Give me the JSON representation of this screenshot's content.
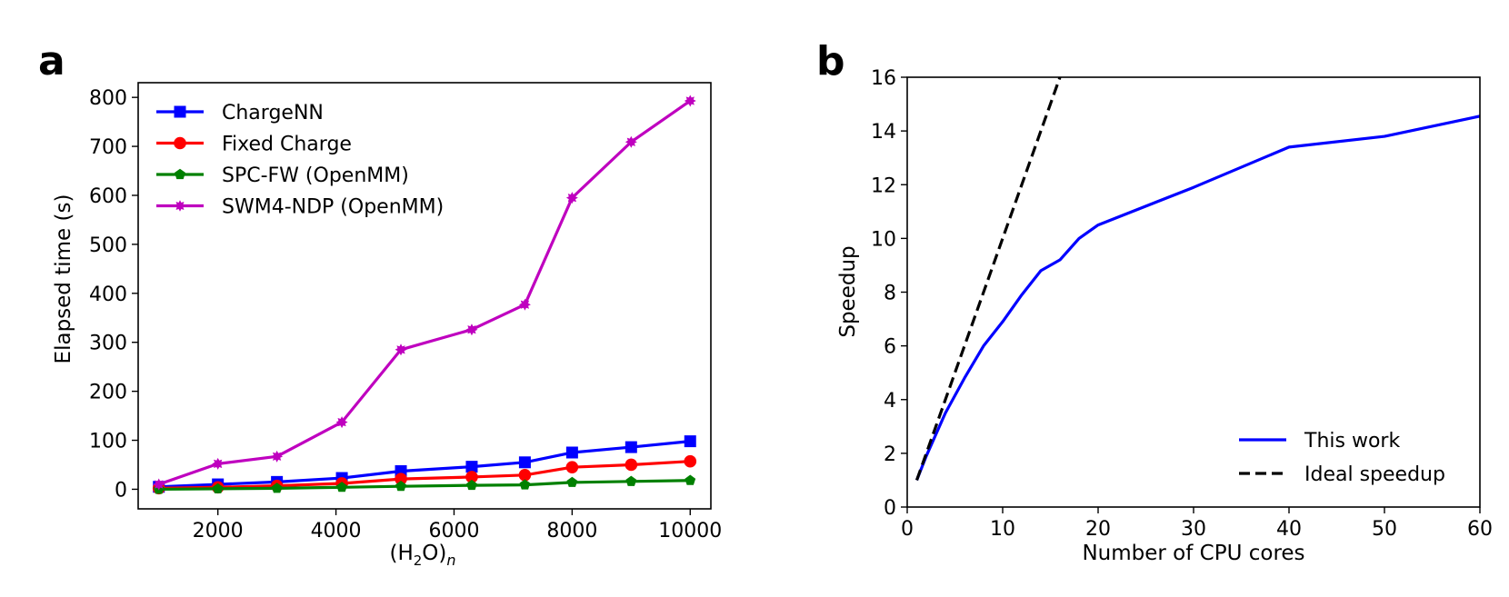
{
  "chart_data": [
    {
      "panel": "a",
      "type": "line",
      "xlabel_prefix": "(H",
      "xlabel_sub": "2",
      "xlabel_mid": "O)",
      "xlabel_subscript_var": "n",
      "ylabel": "Elapsed time (s)",
      "xlim": [
        650,
        10350
      ],
      "ylim": [
        -40,
        830
      ],
      "xticks": [
        2000,
        4000,
        6000,
        8000,
        10000
      ],
      "yticks": [
        0,
        100,
        200,
        300,
        400,
        500,
        600,
        700,
        800
      ],
      "x": [
        1000,
        2000,
        3000,
        4100,
        5100,
        6300,
        7200,
        8000,
        9000,
        10000
      ],
      "legend_position": "top-left",
      "series": [
        {
          "name": "ChargeNN",
          "color": "#0000ff",
          "marker": "square",
          "values": [
            5,
            10,
            15,
            23,
            37,
            46,
            55,
            75,
            86,
            98
          ]
        },
        {
          "name": "Fixed Charge",
          "color": "#ff0000",
          "marker": "circle",
          "values": [
            2,
            4,
            7,
            12,
            21,
            25,
            29,
            45,
            50,
            57
          ]
        },
        {
          "name": "SPC-FW (OpenMM)",
          "color": "#008000",
          "marker": "pentagon",
          "values": [
            0,
            1,
            2,
            4,
            6,
            8,
            9,
            14,
            16,
            18
          ]
        },
        {
          "name": "SWM4-NDP (OpenMM)",
          "color": "#bf00bf",
          "marker": "star",
          "values": [
            10,
            52,
            67,
            137,
            285,
            326,
            377,
            595,
            709,
            793
          ]
        }
      ]
    },
    {
      "panel": "b",
      "type": "line",
      "xlabel": "Number of CPU cores",
      "ylabel": "Speedup",
      "xlim": [
        0,
        60
      ],
      "ylim": [
        0,
        16
      ],
      "xticks": [
        0,
        10,
        20,
        30,
        40,
        50,
        60
      ],
      "yticks": [
        0,
        2,
        4,
        6,
        8,
        10,
        12,
        14,
        16
      ],
      "legend_position": "bottom-right",
      "series": [
        {
          "name": "This work",
          "color": "#0000ff",
          "style": "solid",
          "x": [
            1,
            2,
            4,
            6,
            8,
            10,
            12,
            14,
            16,
            18,
            20,
            30,
            40,
            50,
            60
          ],
          "y": [
            1.0,
            1.9,
            3.5,
            4.8,
            6.0,
            6.9,
            7.9,
            8.8,
            9.2,
            10.0,
            10.5,
            11.9,
            13.4,
            13.8,
            14.55
          ]
        },
        {
          "name": "Ideal speedup",
          "color": "#000000",
          "style": "dashed",
          "x": [
            1,
            16
          ],
          "y": [
            1,
            16
          ]
        }
      ]
    }
  ]
}
